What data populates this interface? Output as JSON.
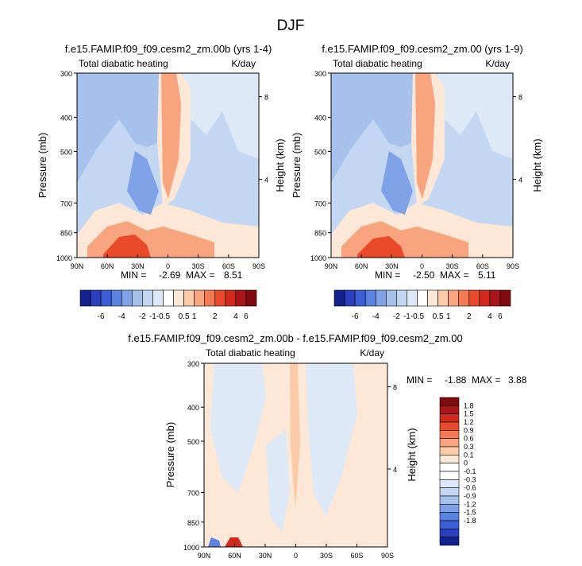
{
  "title": "DJF",
  "colors": {
    "background": "#ffffff",
    "text": "#000000",
    "positive_scale": [
      "#fde7d6",
      "#fbcaa8",
      "#f8a57f",
      "#f27b55",
      "#e94a2a",
      "#cf2a1d",
      "#a91618",
      "#7f0a0f"
    ],
    "negative_scale": [
      "#dde9f7",
      "#c3d6f2",
      "#a6c1ec",
      "#7fa2e6",
      "#5a82e0",
      "#3a5fd6",
      "#2a40bf",
      "#14228e"
    ]
  },
  "y_axis": {
    "label": "Pressure (mb)",
    "ticks": [
      "300",
      "400",
      "500",
      "700",
      "850",
      "1000"
    ],
    "tick_values": [
      300,
      400,
      500,
      700,
      850,
      1000
    ]
  },
  "y_axis_right": {
    "label": "Height (km)",
    "ticks": [
      "8",
      "4"
    ],
    "tick_pressures": [
      350,
      600
    ]
  },
  "x_axis": {
    "ticks": [
      "90N",
      "60N",
      "30N",
      "0",
      "30S",
      "60S",
      "90S"
    ],
    "tick_values": [
      90,
      60,
      30,
      0,
      -30,
      -60,
      -90
    ]
  },
  "panels": [
    {
      "title": "f.e15.FAMIP.f09_f09.cesm2_zm.00b (yrs 1-4)",
      "left_label": "Total diabatic heating",
      "right_label": "K/day",
      "stats": {
        "min_label": "MIN =",
        "min": "-2.69",
        "max_label": "MAX =",
        "max": "8.51"
      }
    },
    {
      "title": "f.e15.FAMIP.f09_f09.cesm2_zm.00 (yrs 1-9)",
      "left_label": "Total diabatic heating",
      "right_label": "K/day",
      "stats": {
        "min_label": "MIN =",
        "min": "-2.50",
        "max_label": "MAX =",
        "max": "5.11"
      }
    },
    {
      "title": "f.e15.FAMIP.f09_f09.cesm2_zm.00b - f.e15.FAMIP.f09_f09.cesm2_zm.00",
      "left_label": "Total diabatic heating",
      "right_label": "K/day",
      "stats": {
        "min_label": "MIN =",
        "min": "-1.88",
        "max_label": "MAX =",
        "max": "3.88"
      }
    }
  ],
  "colorbar_main": {
    "labels": [
      "-6",
      "-4",
      "-2",
      "-1",
      "-0.5",
      "0.5",
      "1",
      "2",
      "4",
      "6"
    ],
    "levels": [
      -6,
      -5,
      -4,
      -3,
      -2,
      -1,
      -0.5,
      0.5,
      1,
      2,
      3,
      4,
      5,
      6
    ]
  },
  "colorbar_diff": {
    "labels": [
      "1.8",
      "1.5",
      "1.2",
      "0.9",
      "0.6",
      "0.3",
      "0.1",
      "0",
      "-0.1",
      "-0.3",
      "-0.6",
      "-0.9",
      "-1.2",
      "-1.5",
      "-1.8"
    ]
  },
  "chart_data": {
    "type": "heatmap",
    "title": "DJF",
    "variable": "Total diabatic heating",
    "units": "K/day",
    "x": [
      "90N",
      "60N",
      "30N",
      "0",
      "30S",
      "60S",
      "90S"
    ],
    "y": [
      300,
      400,
      500,
      700,
      850,
      1000
    ],
    "yscale": "log",
    "ylabel": "Pressure (mb)",
    "ylabel_right": "Height (km)",
    "panels": [
      {
        "name": "f.e15.FAMIP.f09_f09.cesm2_zm.00b (yrs 1-4)",
        "min": -2.69,
        "max": 8.51,
        "levels": [
          -6,
          -5,
          -4,
          -3,
          -2,
          -1,
          -0.5,
          0.5,
          1,
          2,
          3,
          4,
          5,
          6
        ]
      },
      {
        "name": "f.e15.FAMIP.f09_f09.cesm2_zm.00 (yrs 1-9)",
        "min": -2.5,
        "max": 5.11,
        "levels": [
          -6,
          -5,
          -4,
          -3,
          -2,
          -1,
          -0.5,
          0.5,
          1,
          2,
          3,
          4,
          5,
          6
        ]
      },
      {
        "name": "f.e15.FAMIP.f09_f09.cesm2_zm.00b - f.e15.FAMIP.f09_f09.cesm2_zm.00",
        "min": -1.88,
        "max": 3.88,
        "levels": [
          -1.8,
          -1.5,
          -1.2,
          -0.9,
          -0.6,
          -0.3,
          -0.1,
          0,
          0.1,
          0.3,
          0.6,
          0.9,
          1.2,
          1.5,
          1.8
        ]
      }
    ]
  }
}
